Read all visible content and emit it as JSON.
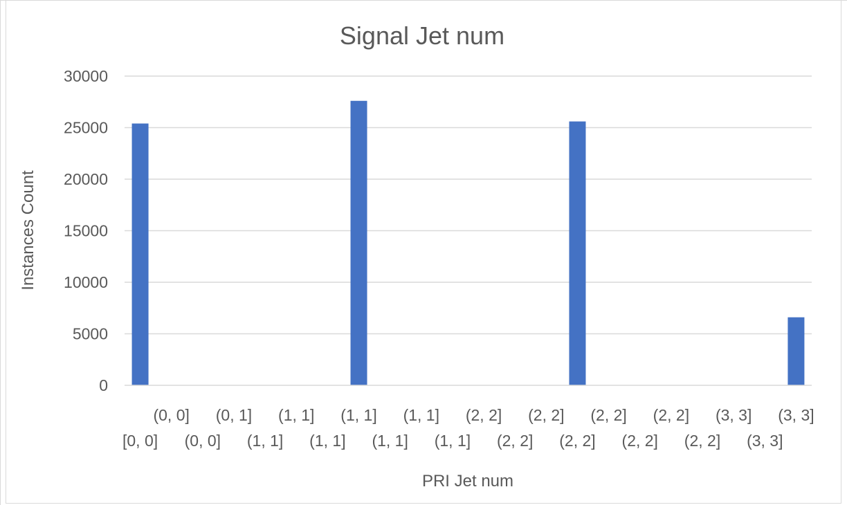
{
  "chart_data": {
    "type": "bar",
    "title": "Signal Jet num",
    "xlabel": "PRI Jet num",
    "ylabel": "Instances Count",
    "ylim": [
      0,
      30000
    ],
    "yticks": [
      0,
      5000,
      10000,
      15000,
      20000,
      25000,
      30000
    ],
    "grid": true,
    "legend": "none",
    "bar_color": "#4472C4",
    "categories": [
      "[0, 0]",
      "(0, 0]",
      "(0, 0]",
      "(0, 1]",
      "(1, 1]",
      "(1, 1]",
      "(1, 1]",
      "(1, 1]",
      "(1, 1]",
      "(1, 1]",
      "(1, 1]",
      "(2, 2]",
      "(2, 2]",
      "(2, 2]",
      "(2, 2]",
      "(2, 2]",
      "(2, 2]",
      "(2, 2]",
      "(2, 2]",
      "(3, 3]",
      "(3, 3]",
      "(3, 3]"
    ],
    "values": [
      25400,
      0,
      0,
      0,
      0,
      0,
      0,
      27600,
      0,
      0,
      0,
      0,
      0,
      0,
      25600,
      0,
      0,
      0,
      0,
      0,
      0,
      6600
    ]
  }
}
